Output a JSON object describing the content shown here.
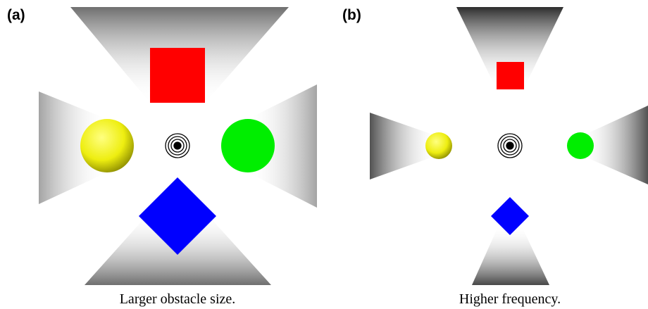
{
  "panels": [
    {
      "label": "(a)",
      "caption": "Larger obstacle size."
    },
    {
      "label": "(b)",
      "caption": "Higher frequency."
    }
  ]
}
